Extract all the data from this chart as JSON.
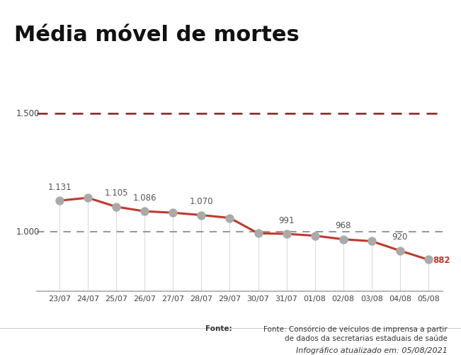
{
  "title": "Média móvel de mortes",
  "dates": [
    "23/07",
    "24/07",
    "25/07",
    "26/07",
    "27/07",
    "28/07",
    "29/07",
    "30/07",
    "31/07",
    "01/08",
    "02/08",
    "03/08",
    "04/08",
    "05/08"
  ],
  "values": [
    1131,
    1105,
    1086,
    1070,
    991,
    968,
    920,
    882
  ],
  "all_values": [
    1131,
    1143,
    1105,
    1086,
    1080,
    1070,
    1058,
    993,
    991,
    983,
    968,
    960,
    920,
    882
  ],
  "labeled_indices": [
    0,
    2,
    3,
    5,
    8,
    10,
    12,
    13
  ],
  "labeled_values": [
    1131,
    1105,
    1086,
    1070,
    991,
    968,
    920,
    882
  ],
  "line_color": "#c0392b",
  "marker_color": "#aaaaaa",
  "marker_edge_color": "#aaaaaa",
  "ref_line_1500": 1500,
  "ref_line_1000": 1000,
  "ref_color_1500": "#8b1a1a",
  "ref_color_1000": "#999999",
  "last_label_color": "#c0392b",
  "background_color": "#ffffff",
  "source_text": "Fonte: Consórcio de veículos de imprensa a partir\nde dados da secretarias estaduais de saúde",
  "footer_text": "Infográfico atualizado em: 05/08/2021",
  "g1_color": "#c0392b",
  "ylim_min": 750,
  "ylim_max": 1650
}
